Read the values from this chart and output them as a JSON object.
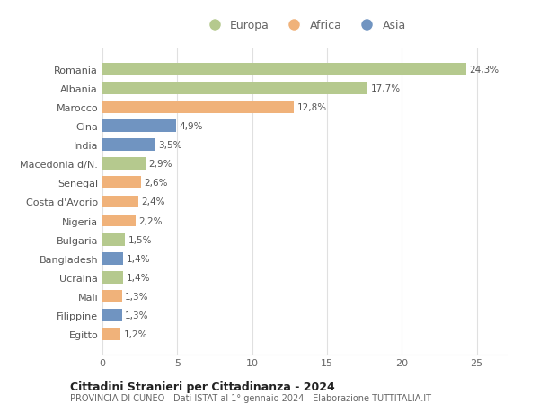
{
  "countries": [
    "Romania",
    "Albania",
    "Marocco",
    "Cina",
    "India",
    "Macedonia d/N.",
    "Senegal",
    "Costa d'Avorio",
    "Nigeria",
    "Bulgaria",
    "Bangladesh",
    "Ucraina",
    "Mali",
    "Filippine",
    "Egitto"
  ],
  "values": [
    24.3,
    17.7,
    12.8,
    4.9,
    3.5,
    2.9,
    2.6,
    2.4,
    2.2,
    1.5,
    1.4,
    1.4,
    1.3,
    1.3,
    1.2
  ],
  "continents": [
    "Europa",
    "Europa",
    "Africa",
    "Asia",
    "Asia",
    "Europa",
    "Africa",
    "Africa",
    "Africa",
    "Europa",
    "Asia",
    "Europa",
    "Africa",
    "Asia",
    "Africa"
  ],
  "colors": {
    "Europa": "#b5c98e",
    "Africa": "#f0b27a",
    "Asia": "#7094c1"
  },
  "title": "Cittadini Stranieri per Cittadinanza - 2024",
  "subtitle": "PROVINCIA DI CUNEO - Dati ISTAT al 1° gennaio 2024 - Elaborazione TUTTITALIA.IT",
  "xlim": [
    0,
    27
  ],
  "xticks": [
    0,
    5,
    10,
    15,
    20,
    25
  ],
  "background_color": "#ffffff",
  "grid_color": "#e0e0e0"
}
